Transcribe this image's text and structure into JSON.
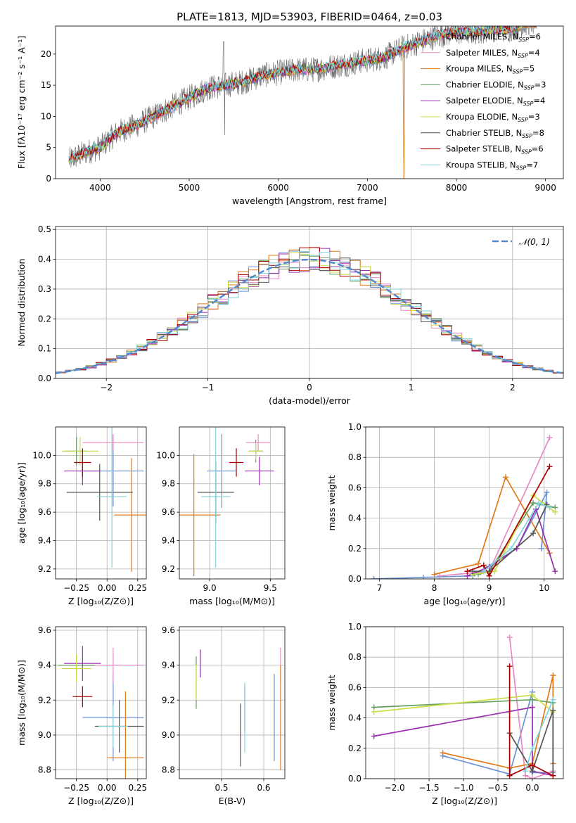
{
  "figure": {
    "title": "PLATE=1813, MJD=53903, FIBERID=0464, z=0.03"
  },
  "colors": {
    "palette": [
      "#6b93d6",
      "#e78ac3",
      "#e07b18",
      "#66a061",
      "#9b30b0",
      "#ccdd44",
      "#555555",
      "#aa0000",
      "#80d4dc"
    ],
    "grid": "#b0b0b0",
    "normal_curve": "#5588cc",
    "spectrum_data": "#666666"
  },
  "chart_data": [
    {
      "id": "spectrum",
      "type": "line",
      "title": "PLATE=1813, MJD=53903, FIBERID=0464, z=0.03",
      "xlabel": "wavelength [Angstrom, rest frame]",
      "ylabel": "Flux [fλ10⁻¹⁷ erg cm⁻² s⁻¹ A⁻¹]",
      "xlim": [
        3500,
        9200
      ],
      "ylim": [
        0,
        24.5
      ],
      "xticks": [
        4000,
        5000,
        6000,
        7000,
        8000,
        9000
      ],
      "yticks": [
        0,
        5,
        10,
        15,
        20
      ],
      "grid": false,
      "legend_position": "top-right",
      "series": [
        {
          "name": "Chabrier MILES, N",
          "sub": "SSP",
          "suffix": "=6"
        },
        {
          "name": "Salpeter MILES, N",
          "sub": "SSP",
          "suffix": "=4"
        },
        {
          "name": "Kroupa MILES, N",
          "sub": "SSP",
          "suffix": "=5"
        },
        {
          "name": "Chabrier ELODIE, N",
          "sub": "SSP",
          "suffix": "=3"
        },
        {
          "name": "Salpeter ELODIE, N",
          "sub": "SSP",
          "suffix": "=4"
        },
        {
          "name": "Kroupa ELODIE, N",
          "sub": "SSP",
          "suffix": "=3"
        },
        {
          "name": "Chabrier STELIB, N",
          "sub": "SSP",
          "suffix": "=8"
        },
        {
          "name": "Salpeter STELIB, N",
          "sub": "SSP",
          "suffix": "=6"
        },
        {
          "name": "Kroupa STELIB, N",
          "sub": "SSP",
          "suffix": "=7"
        }
      ],
      "continuum": [
        [
          3650,
          3
        ],
        [
          3800,
          4
        ],
        [
          4000,
          5
        ],
        [
          4200,
          7.5
        ],
        [
          4400,
          8.5
        ],
        [
          4600,
          10
        ],
        [
          4800,
          11.5
        ],
        [
          5000,
          13
        ],
        [
          5200,
          14.5
        ],
        [
          5400,
          15
        ],
        [
          5600,
          15.5
        ],
        [
          5800,
          16.5
        ],
        [
          6000,
          17
        ],
        [
          6200,
          17.5
        ],
        [
          6400,
          17.5
        ],
        [
          6600,
          18
        ],
        [
          6800,
          18.5
        ],
        [
          7000,
          19
        ],
        [
          7200,
          19.5
        ],
        [
          7400,
          21
        ],
        [
          7600,
          22
        ],
        [
          7800,
          23
        ],
        [
          8000,
          23.5
        ],
        [
          8200,
          23.5
        ],
        [
          8400,
          24
        ],
        [
          8600,
          24
        ],
        [
          8800,
          25
        ]
      ]
    },
    {
      "id": "residuals",
      "type": "line",
      "xlabel": "(data-model)/error",
      "ylabel": "Normed distribution",
      "xlim": [
        -2.5,
        2.5
      ],
      "ylim": [
        0,
        0.51
      ],
      "xticks": [
        -2,
        -1,
        0,
        1,
        2
      ],
      "yticks": [
        0.0,
        0.1,
        0.2,
        0.3,
        0.4,
        0.5
      ],
      "grid": true,
      "legend_position": "top-right",
      "normal_label": "𝒩(0, 1)",
      "bin_width": 0.1
    },
    {
      "id": "age-vs-Z",
      "type": "scatter",
      "xlabel": "Z [log₁₀(Z/Z⊙)]",
      "ylabel": "age  [log₁₀(age/yr)]",
      "xlim": [
        -0.42,
        0.32
      ],
      "ylim": [
        9.13,
        10.2
      ],
      "xticks": [
        -0.25,
        0.0,
        0.25
      ],
      "yticks": [
        9.2,
        9.4,
        9.6,
        9.8,
        10.0
      ],
      "grid": true,
      "points": [
        {
          "x": 0.05,
          "y": 9.89,
          "xerr": 0.25,
          "yerr": 0.25,
          "c": 0
        },
        {
          "x": 0.05,
          "y": 10.09,
          "xerr": 0.25,
          "yerr": 0.06,
          "c": 1
        },
        {
          "x": 0.2,
          "y": 9.58,
          "xerr": 0.14,
          "yerr": 0.4,
          "c": 2
        },
        {
          "x": -0.25,
          "y": 10.03,
          "xerr": 0.09,
          "yerr": 0.1,
          "c": 3
        },
        {
          "x": -0.2,
          "y": 9.89,
          "xerr": 0.15,
          "yerr": 0.1,
          "c": 4
        },
        {
          "x": -0.22,
          "y": 10.03,
          "xerr": 0.15,
          "yerr": 0.1,
          "c": 5
        },
        {
          "x": -0.06,
          "y": 9.74,
          "xerr": 0.27,
          "yerr": 0.2,
          "c": 6
        },
        {
          "x": -0.2,
          "y": 9.95,
          "xerr": 0.07,
          "yerr": 0.1,
          "c": 7
        },
        {
          "x": 0.04,
          "y": 9.71,
          "xerr": 0.12,
          "yerr": 0.5,
          "c": 8
        }
      ]
    },
    {
      "id": "age-vs-mass",
      "type": "scatter",
      "xlabel": "mass [log₁₀(M/M⊙)]",
      "ylabel": "",
      "xlim": [
        8.75,
        9.62
      ],
      "ylim": [
        9.13,
        10.2
      ],
      "xticks": [
        9.0,
        9.5
      ],
      "yticks": [
        9.2,
        9.4,
        9.6,
        9.8,
        10.0
      ],
      "grid": true,
      "points": [
        {
          "x": 9.1,
          "y": 9.89,
          "xerr": 0.12,
          "yerr": 0.26,
          "c": 0
        },
        {
          "x": 9.4,
          "y": 10.09,
          "xerr": 0.1,
          "yerr": 0.06,
          "c": 1
        },
        {
          "x": 8.87,
          "y": 9.58,
          "xerr": 0.22,
          "yerr": 0.43,
          "c": 2
        },
        {
          "x": 9.38,
          "y": 10.03,
          "xerr": 0.06,
          "yerr": 0.08,
          "c": 3
        },
        {
          "x": 9.41,
          "y": 9.89,
          "xerr": 0.12,
          "yerr": 0.1,
          "c": 4
        },
        {
          "x": 9.38,
          "y": 10.03,
          "xerr": 0.06,
          "yerr": 0.06,
          "c": 5
        },
        {
          "x": 9.05,
          "y": 9.74,
          "xerr": 0.15,
          "yerr": 0.22,
          "c": 6
        },
        {
          "x": 9.22,
          "y": 9.95,
          "xerr": 0.06,
          "yerr": 0.1,
          "c": 7
        },
        {
          "x": 9.05,
          "y": 9.71,
          "xerr": 0.12,
          "yerr": 0.5,
          "c": 8
        }
      ]
    },
    {
      "id": "weight-vs-age",
      "type": "line",
      "xlabel": "age  [log₁₀(age/yr)]",
      "ylabel": "mass weight",
      "xlim": [
        6.75,
        10.35
      ],
      "ylim": [
        0,
        1.0
      ],
      "xticks": [
        7,
        8,
        9,
        10
      ],
      "yticks": [
        0.0,
        0.2,
        0.4,
        0.6,
        0.8,
        1.0
      ],
      "grid": true,
      "series": [
        {
          "c": 0,
          "points": [
            [
              6.9,
              0.0
            ],
            [
              7.8,
              0.01
            ],
            [
              8.7,
              0.02
            ],
            [
              9.5,
              0.2
            ],
            [
              10.05,
              0.57
            ],
            [
              9.95,
              0.2
            ]
          ]
        },
        {
          "c": 1,
          "points": [
            [
              8.1,
              0.02
            ],
            [
              8.7,
              0.04
            ],
            [
              9.0,
              0.05
            ],
            [
              10.1,
              0.93
            ]
          ]
        },
        {
          "c": 2,
          "points": [
            [
              8.0,
              0.03
            ],
            [
              8.8,
              0.1
            ],
            [
              9.3,
              0.67
            ],
            [
              10.1,
              0.17
            ]
          ]
        },
        {
          "c": 3,
          "points": [
            [
              8.8,
              0.03
            ],
            [
              9.0,
              0.05
            ],
            [
              9.8,
              0.5
            ],
            [
              10.2,
              0.47
            ]
          ]
        },
        {
          "c": 4,
          "points": [
            [
              8.6,
              0.02
            ],
            [
              9.0,
              0.08
            ],
            [
              9.5,
              0.2
            ],
            [
              9.85,
              0.46
            ],
            [
              10.2,
              0.05
            ]
          ]
        },
        {
          "c": 5,
          "points": [
            [
              8.7,
              0.03
            ],
            [
              9.1,
              0.05
            ],
            [
              9.8,
              0.55
            ],
            [
              10.2,
              0.44
            ]
          ]
        },
        {
          "c": 6,
          "points": [
            [
              8.7,
              0.05
            ],
            [
              9.0,
              0.05
            ],
            [
              9.8,
              0.3
            ],
            [
              10.05,
              0.49
            ]
          ]
        },
        {
          "c": 7,
          "points": [
            [
              8.6,
              0.05
            ],
            [
              8.9,
              0.09
            ],
            [
              9.0,
              0.02
            ],
            [
              10.1,
              0.74
            ]
          ]
        },
        {
          "c": 8,
          "points": [
            [
              8.9,
              0.05
            ],
            [
              9.4,
              0.2
            ],
            [
              9.9,
              0.5
            ],
            [
              10.1,
              0.47
            ]
          ]
        }
      ]
    },
    {
      "id": "mass-vs-Z",
      "type": "scatter",
      "xlabel": "Z [log₁₀(Z/Z⊙)]",
      "ylabel": "mass [log₁₀(M/M⊙)]",
      "xlim": [
        -0.42,
        0.32
      ],
      "ylim": [
        8.75,
        9.62
      ],
      "xticks": [
        -0.25,
        0.0,
        0.25
      ],
      "yticks": [
        8.8,
        9.0,
        9.2,
        9.4,
        9.6
      ],
      "grid": true,
      "points": [
        {
          "x": 0.05,
          "y": 9.1,
          "xerr": 0.25,
          "yerr": 0.25,
          "c": 0
        },
        {
          "x": 0.05,
          "y": 9.4,
          "xerr": 0.25,
          "yerr": 0.1,
          "c": 1
        },
        {
          "x": 0.15,
          "y": 8.87,
          "xerr": 0.15,
          "yerr": 0.38,
          "c": 2
        },
        {
          "x": -0.25,
          "y": 9.4,
          "xerr": 0.15,
          "yerr": 0.05,
          "c": 3
        },
        {
          "x": -0.2,
          "y": 9.41,
          "xerr": 0.15,
          "yerr": 0.1,
          "c": 4
        },
        {
          "x": -0.25,
          "y": 9.38,
          "xerr": 0.12,
          "yerr": 0.08,
          "c": 5
        },
        {
          "x": 0.1,
          "y": 9.05,
          "xerr": 0.2,
          "yerr": 0.15,
          "c": 6
        },
        {
          "x": -0.2,
          "y": 9.22,
          "xerr": 0.08,
          "yerr": 0.06,
          "c": 7
        },
        {
          "x": 0.05,
          "y": 9.05,
          "xerr": 0.12,
          "yerr": 0.12,
          "c": 8
        }
      ]
    },
    {
      "id": "mass-vs-ebv",
      "type": "scatter",
      "xlabel": "E(B-V)",
      "ylabel": "",
      "xlim": [
        0.4,
        0.65
      ],
      "ylim": [
        8.75,
        9.62
      ],
      "xticks": [
        0.5,
        0.6
      ],
      "yticks": [
        8.8,
        9.0,
        9.2,
        9.4,
        9.6
      ],
      "grid": true,
      "points": [
        {
          "x": 0.625,
          "y": 9.1,
          "xerr": 0,
          "yerr": 0.25,
          "c": 0
        },
        {
          "x": 0.64,
          "y": 9.4,
          "xerr": 0,
          "yerr": 0.1,
          "c": 1
        },
        {
          "x": 0.64,
          "y": 9.1,
          "xerr": 0,
          "yerr": 0.3,
          "c": 2
        },
        {
          "x": 0.44,
          "y": 9.3,
          "xerr": 0,
          "yerr": 0.15,
          "c": 3
        },
        {
          "x": 0.45,
          "y": 9.41,
          "xerr": 0,
          "yerr": 0.08,
          "c": 4
        },
        {
          "x": 0.44,
          "y": 9.3,
          "xerr": 0,
          "yerr": 0.1,
          "c": 5
        },
        {
          "x": 0.545,
          "y": 9.0,
          "xerr": 0,
          "yerr": 0.18,
          "c": 6
        },
        {
          "x": 0.555,
          "y": 9.15,
          "xerr": 0,
          "yerr": 0.13,
          "c": 7
        },
        {
          "x": 0.555,
          "y": 9.1,
          "xerr": 0,
          "yerr": 0.2,
          "c": 8
        }
      ]
    },
    {
      "id": "weight-vs-Z",
      "type": "line",
      "xlabel": "Z [log₁₀(Z/Z⊙)]",
      "ylabel": "mass weight",
      "xlim": [
        -2.42,
        0.45
      ],
      "ylim": [
        0,
        1.0
      ],
      "xticks": [
        -2.0,
        -1.5,
        -1.0,
        -0.5,
        0.0
      ],
      "yticks": [
        0.0,
        0.2,
        0.4,
        0.6,
        0.8,
        1.0
      ],
      "grid": true,
      "series": [
        {
          "c": 0,
          "points": [
            [
              -1.3,
              0.15
            ],
            [
              -0.33,
              0.03
            ],
            [
              0.0,
              0.57
            ],
            [
              0.0,
              0.04
            ],
            [
              0.3,
              0.04
            ]
          ]
        },
        {
          "c": 1,
          "points": [
            [
              -0.33,
              0.93
            ],
            [
              -0.1,
              0.02
            ],
            [
              0.0,
              0.0
            ],
            [
              0.3,
              0.05
            ]
          ]
        },
        {
          "c": 2,
          "points": [
            [
              -1.3,
              0.17
            ],
            [
              -0.33,
              0.07
            ],
            [
              0.0,
              0.1
            ],
            [
              0.3,
              0.68
            ],
            [
              0.3,
              0.1
            ]
          ]
        },
        {
          "c": 3,
          "points": [
            [
              -2.3,
              0.47
            ],
            [
              0.0,
              0.52
            ],
            [
              0.3,
              0.5
            ]
          ]
        },
        {
          "c": 4,
          "points": [
            [
              -2.3,
              0.28
            ],
            [
              0.0,
              0.47
            ],
            [
              0.0,
              0.05
            ],
            [
              0.3,
              0.02
            ]
          ]
        },
        {
          "c": 5,
          "points": [
            [
              -2.3,
              0.44
            ],
            [
              0.0,
              0.55
            ],
            [
              0.3,
              0.44
            ]
          ]
        },
        {
          "c": 6,
          "points": [
            [
              -0.33,
              0.3
            ],
            [
              0.0,
              0.05
            ],
            [
              0.3,
              0.45
            ],
            [
              0.3,
              0.02
            ]
          ]
        },
        {
          "c": 7,
          "points": [
            [
              -0.33,
              0.74
            ],
            [
              -0.33,
              0.02
            ],
            [
              0.0,
              0.09
            ],
            [
              0.3,
              0.02
            ]
          ]
        },
        {
          "c": 8,
          "points": [
            [
              -0.1,
              0.05
            ],
            [
              0.0,
              0.2
            ],
            [
              0.3,
              0.52
            ]
          ]
        }
      ]
    }
  ]
}
